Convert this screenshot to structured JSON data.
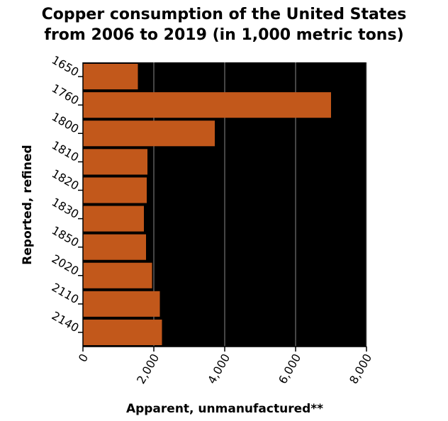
{
  "chart_data": {
    "type": "bar",
    "orientation": "horizontal",
    "title_line1": "Copper consumption of the United States",
    "title_line2": "from 2006 to 2019 (in 1,000 metric tons)",
    "xlabel": "Apparent, unmanufactured**",
    "ylabel": "Reported, refined",
    "categories": [
      "1650",
      "1760",
      "1800",
      "1810",
      "1820",
      "1830",
      "1850",
      "2020",
      "2110",
      "2140"
    ],
    "values": [
      1550,
      7000,
      3720,
      1820,
      1800,
      1720,
      1780,
      1950,
      2170,
      2230
    ],
    "xlim": [
      0,
      8000
    ],
    "xticks": [
      0,
      2000,
      4000,
      6000,
      8000
    ],
    "xtick_labels": [
      "0",
      "2,000",
      "4,000",
      "6,000",
      "8,000"
    ],
    "grid": "vertical",
    "bar_color": "#c2581b",
    "background_color": "#000000",
    "grid_color": "#8a8a8a"
  }
}
